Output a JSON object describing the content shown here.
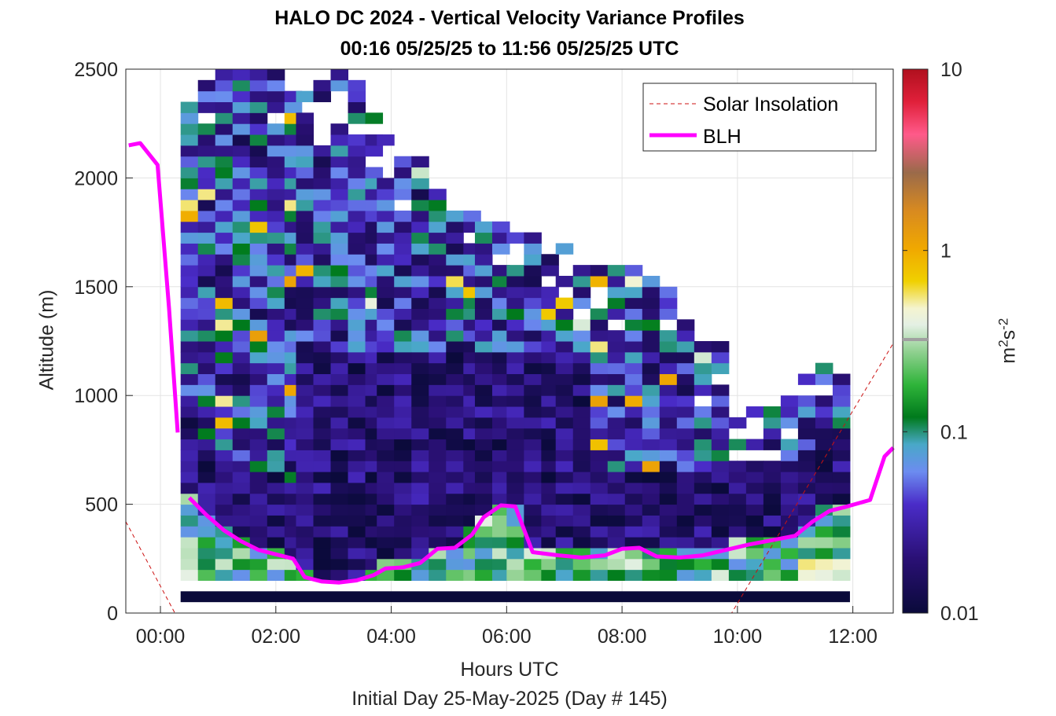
{
  "chart_data": {
    "type": "heatmap",
    "title": "HALO DC 2024 - Vertical Velocity Variance Profiles",
    "subtitle": "00:16 05/25/25 to 11:56 05/25/25  UTC",
    "xlabel": "Hours UTC",
    "xsublabel": "Initial Day 25-May-2025 (Day # 145)",
    "ylabel": "Altitude (m)",
    "xlim": [
      -0.6,
      12.7
    ],
    "ylim": [
      0,
      2500
    ],
    "x_ticks": [
      "00:00",
      "02:00",
      "04:00",
      "06:00",
      "08:00",
      "10:00",
      "12:00"
    ],
    "y_ticks": [
      "0",
      "500",
      "1000",
      "1500",
      "2000",
      "2500"
    ],
    "grid": true,
    "legend_position": "top-right",
    "legend": [
      {
        "label": "Solar Insolation",
        "style": "dashed",
        "color": "#cc1111"
      },
      {
        "label": "BLH",
        "style": "solid",
        "color": "#ff00ff"
      }
    ],
    "colorbar": {
      "scale": "log",
      "range": [
        0.01,
        10
      ],
      "ticks": [
        "0.01",
        "0.1",
        "1",
        "10"
      ],
      "label_base": "m",
      "label_sup1": "2",
      "label_mid": "s",
      "label_sup2": "-2"
    },
    "blh_series": [
      {
        "x": -0.55,
        "y": 2150
      },
      {
        "x": -0.35,
        "y": 2160
      },
      {
        "x": -0.05,
        "y": 2060
      },
      {
        "x": 0.15,
        "y": 1400
      },
      {
        "x": 0.3,
        "y": 830
      }
    ],
    "blh_series_2": [
      {
        "x": 0.5,
        "y": 530
      },
      {
        "x": 0.8,
        "y": 450
      },
      {
        "x": 1.1,
        "y": 380
      },
      {
        "x": 1.4,
        "y": 330
      },
      {
        "x": 1.7,
        "y": 290
      },
      {
        "x": 2.0,
        "y": 270
      },
      {
        "x": 2.3,
        "y": 250
      },
      {
        "x": 2.5,
        "y": 165
      },
      {
        "x": 2.8,
        "y": 145
      },
      {
        "x": 3.1,
        "y": 140
      },
      {
        "x": 3.4,
        "y": 150
      },
      {
        "x": 3.7,
        "y": 175
      },
      {
        "x": 3.9,
        "y": 205
      },
      {
        "x": 4.2,
        "y": 210
      },
      {
        "x": 4.5,
        "y": 230
      },
      {
        "x": 4.8,
        "y": 295
      },
      {
        "x": 5.1,
        "y": 300
      },
      {
        "x": 5.4,
        "y": 360
      },
      {
        "x": 5.6,
        "y": 440
      },
      {
        "x": 5.9,
        "y": 495
      },
      {
        "x": 6.15,
        "y": 490
      },
      {
        "x": 6.45,
        "y": 280
      },
      {
        "x": 6.9,
        "y": 265
      },
      {
        "x": 7.3,
        "y": 255
      },
      {
        "x": 7.7,
        "y": 265
      },
      {
        "x": 8.0,
        "y": 295
      },
      {
        "x": 8.3,
        "y": 300
      },
      {
        "x": 8.6,
        "y": 260
      },
      {
        "x": 9.0,
        "y": 255
      },
      {
        "x": 9.4,
        "y": 265
      },
      {
        "x": 9.8,
        "y": 290
      },
      {
        "x": 10.2,
        "y": 315
      },
      {
        "x": 10.6,
        "y": 335
      },
      {
        "x": 11.0,
        "y": 355
      },
      {
        "x": 11.3,
        "y": 420
      },
      {
        "x": 11.6,
        "y": 470
      },
      {
        "x": 11.9,
        "y": 490
      },
      {
        "x": 12.3,
        "y": 520
      },
      {
        "x": 12.55,
        "y": 720
      },
      {
        "x": 12.7,
        "y": 760
      }
    ],
    "solar_insolation": [
      {
        "x": -0.6,
        "y": 420
      },
      {
        "x": 0.25,
        "y": 0
      },
      {
        "x": 9.9,
        "y": 0
      },
      {
        "x": 12.7,
        "y": 1240
      }
    ],
    "profile_times": [
      0.5,
      0.8,
      1.1,
      1.4,
      1.7,
      2.0,
      2.3,
      2.5,
      2.8,
      3.1,
      3.4,
      3.7,
      3.9,
      4.2,
      4.5,
      4.8,
      5.1,
      5.4,
      5.6,
      5.9,
      6.15,
      6.45,
      6.75,
      7.0,
      7.3,
      7.6,
      7.9,
      8.2,
      8.5,
      8.8,
      9.1,
      9.4,
      9.7,
      10.0,
      10.3,
      10.6,
      10.9,
      11.2,
      11.5,
      11.8
    ],
    "profile_tops_m": [
      2380,
      2500,
      2500,
      2500,
      2500,
      2470,
      2450,
      2400,
      2440,
      2480,
      2470,
      2310,
      2200,
      2100,
      2070,
      2000,
      1870,
      1840,
      1800,
      1790,
      1750,
      1710,
      1660,
      1660,
      1560,
      1560,
      1580,
      1560,
      1520,
      1500,
      1350,
      1220,
      1220,
      950,
      950,
      920,
      960,
      1140,
      1170,
      1080
    ],
    "surface_variance": 0.01
  }
}
